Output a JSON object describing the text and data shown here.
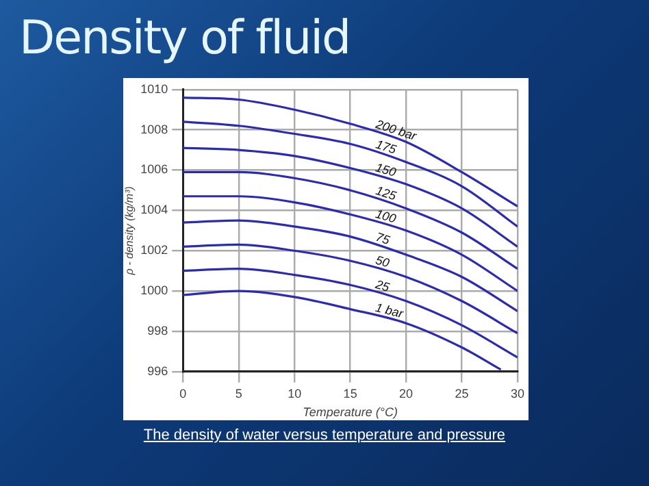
{
  "chart_data": {
    "type": "line",
    "title": "Density of fluid",
    "xlabel": "Temperature (°C)",
    "ylabel": "ρ - density (kg/m³)",
    "annotations": [
      "The density of water versus temperature and pressure"
    ],
    "x": [
      0,
      5,
      10,
      15,
      20,
      25,
      30
    ],
    "series": [
      {
        "name": "200 bar",
        "color": "#2a2ab4",
        "values": [
          1009.6,
          1009.5,
          1009.0,
          1008.3,
          1007.4,
          1005.9,
          1004.2
        ]
      },
      {
        "name": "175",
        "color": "#2a2ab4",
        "values": [
          1008.4,
          1008.2,
          1007.8,
          1007.3,
          1006.4,
          1005.2,
          1003.2
        ]
      },
      {
        "name": "150",
        "color": "#2a2ab4",
        "values": [
          1007.1,
          1007.0,
          1006.7,
          1006.1,
          1005.3,
          1004.1,
          1002.2
        ]
      },
      {
        "name": "125",
        "color": "#2a2ab4",
        "values": [
          1005.9,
          1005.9,
          1005.6,
          1005.0,
          1004.1,
          1002.9,
          1001.1
        ]
      },
      {
        "name": "100",
        "color": "#2a2ab4",
        "values": [
          1004.7,
          1004.7,
          1004.4,
          1003.8,
          1003.0,
          1001.8,
          1000.0
        ]
      },
      {
        "name": "75",
        "color": "#2a2ab4",
        "values": [
          1003.4,
          1003.5,
          1003.2,
          1002.7,
          1001.8,
          1000.7,
          999.0
        ]
      },
      {
        "name": "50",
        "color": "#2a2ab4",
        "values": [
          1002.2,
          1002.3,
          1002.0,
          1001.5,
          1000.7,
          999.5,
          997.9
        ]
      },
      {
        "name": "25",
        "color": "#2a2ab4",
        "values": [
          1001.0,
          1001.1,
          1000.8,
          1000.3,
          999.5,
          998.3,
          996.7
        ]
      },
      {
        "name": "1 bar",
        "color": "#2a2ab4",
        "x": [
          0,
          5,
          10,
          15,
          20,
          25,
          28.5
        ],
        "values": [
          999.8,
          1000.0,
          999.7,
          999.1,
          998.4,
          997.2,
          996.1
        ]
      }
    ],
    "xlim": [
      0,
      30
    ],
    "xticks": [
      0,
      5,
      10,
      15,
      20,
      25,
      30
    ],
    "ylim": [
      996,
      1010
    ],
    "yticks": [
      996,
      998,
      1000,
      1002,
      1004,
      1006,
      1008,
      1010
    ],
    "grid": true,
    "legend": false,
    "marker": "none",
    "line_style": "solid"
  }
}
